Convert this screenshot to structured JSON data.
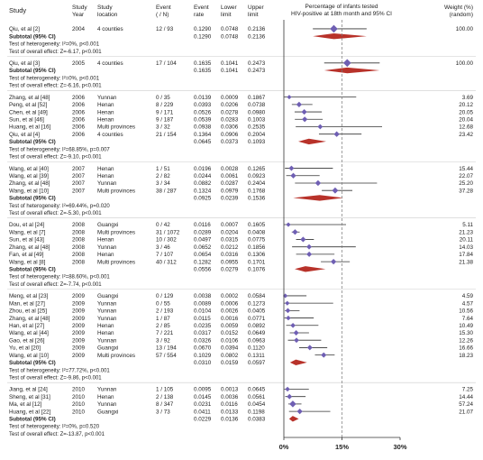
{
  "header": {
    "study": "Study",
    "study_year": [
      "Study",
      "Year"
    ],
    "study_location": [
      "Study",
      "location"
    ],
    "event_n": [
      "Event",
      "( / N)"
    ],
    "event_rate": [
      "Event",
      "rate"
    ],
    "lower": [
      "Lower",
      "limit"
    ],
    "upper": [
      "Upper",
      "limit"
    ],
    "plot_title": [
      "Percentage of infants tested",
      "HIV-positive at 18th month and 95% CI"
    ],
    "weight": [
      "Weight (%)",
      "(random)"
    ]
  },
  "colors": {
    "study_marker": "#6f5fb3",
    "summary_diamond": "#b8322a",
    "line": "#333333",
    "faint": "#cccccc"
  },
  "chart_data": {
    "type": "forest",
    "axis": {
      "min": 0,
      "max": 30,
      "ticks": [
        0,
        15,
        30
      ],
      "tick_labels": [
        "0%",
        "15%",
        "30%"
      ],
      "dashed_reference": 15
    },
    "groups": [
      {
        "year": "2004",
        "rows": [
          {
            "study": "Qiu, et al [2]",
            "year": "2004",
            "location": "4 counties",
            "event": "12 / 93",
            "rate": "0.1290",
            "lower": "0.0748",
            "upper": "0.2136",
            "weight": "100.00",
            "est": 12.9,
            "lo": 7.48,
            "hi": 21.36
          }
        ],
        "subtotal": {
          "label": "Subtotal (95% CI)",
          "rate": "0.1290",
          "lower": "0.0748",
          "upper": "0.2136",
          "est": 12.9,
          "lo": 7.48,
          "hi": 21.36
        },
        "heterogeneity": "Test of heterogeneity: I²=0%, p<0.001",
        "overall": "Test of overall effect: Z=-6.17, p<0.001"
      },
      {
        "year": "2005",
        "rows": [
          {
            "study": "Qiu, et al [3]",
            "year": "2005",
            "location": "4 counties",
            "event": "17 / 104",
            "rate": "0.1635",
            "lower": "0.1041",
            "upper": "0.2473",
            "weight": "100.00",
            "est": 16.35,
            "lo": 10.41,
            "hi": 24.73
          }
        ],
        "subtotal": {
          "label": "Subtotal (95% CI)",
          "rate": "0.1635",
          "lower": "0.1041",
          "upper": "0.2473",
          "est": 16.35,
          "lo": 10.41,
          "hi": 24.73
        },
        "heterogeneity": "Test of heterogeneity: I²=0%, p<0.001",
        "overall": "Test of overall effect: Z=-6.16, p<0.001"
      },
      {
        "year": "2006",
        "rows": [
          {
            "study": "Zhang, et al [48]",
            "year": "2006",
            "location": "Yunnan",
            "event": "0 / 35",
            "rate": "0.0139",
            "lower": "0.0009",
            "upper": "0.1867",
            "weight": "3.69",
            "est": 1.39,
            "lo": 0.09,
            "hi": 18.67
          },
          {
            "study": "Peng, et al [52]",
            "year": "2006",
            "location": "Henan",
            "event": "8 / 229",
            "rate": "0.0393",
            "lower": "0.0206",
            "upper": "0.0738",
            "weight": "20.12",
            "est": 3.93,
            "lo": 2.06,
            "hi": 7.38
          },
          {
            "study": "Chen, et al [49]",
            "year": "2006",
            "location": "Henan",
            "event": "9 / 171",
            "rate": "0.0526",
            "lower": "0.0278",
            "upper": "0.0980",
            "weight": "20.05",
            "est": 5.26,
            "lo": 2.78,
            "hi": 9.8
          },
          {
            "study": "Sun, et al [46]",
            "year": "2006",
            "location": "Henan",
            "event": "9 / 187",
            "rate": "0.0539",
            "lower": "0.0283",
            "upper": "0.1003",
            "weight": "20.04",
            "est": 5.39,
            "lo": 2.83,
            "hi": 10.03
          },
          {
            "study": "Huang, et al [16]",
            "year": "2006",
            "location": "Multi provinces",
            "event": "3 / 32",
            "rate": "0.0938",
            "lower": "0.0306",
            "upper": "0.2535",
            "weight": "12.68",
            "est": 9.38,
            "lo": 3.06,
            "hi": 25.35
          },
          {
            "study": "Qiu, et al [4]",
            "year": "2006",
            "location": "4 counties",
            "event": "21 / 154",
            "rate": "0.1364",
            "lower": "0.0906",
            "upper": "0.2004",
            "weight": "23.42",
            "est": 13.64,
            "lo": 9.06,
            "hi": 20.04
          }
        ],
        "subtotal": {
          "label": "Subtotal (95% CI)",
          "rate": "0.0645",
          "lower": "0.0373",
          "upper": "0.1093",
          "est": 6.45,
          "lo": 3.73,
          "hi": 10.93
        },
        "heterogeneity": "Test of heterogeneity: I²=68.85%, p=0.007",
        "overall": "Test of overall effect: Z=-9.10, p<0.001"
      },
      {
        "year": "2007",
        "rows": [
          {
            "study": "Wang, et al [40]",
            "year": "2007",
            "location": "Henan",
            "event": "1 / 51",
            "rate": "0.0196",
            "lower": "0.0028",
            "upper": "0.1265",
            "weight": "15.44",
            "est": 1.96,
            "lo": 0.28,
            "hi": 12.65
          },
          {
            "study": "Wang, et al [39]",
            "year": "2007",
            "location": "Henan",
            "event": "2 / 82",
            "rate": "0.0244",
            "lower": "0.0061",
            "upper": "0.0923",
            "weight": "22.07",
            "est": 2.44,
            "lo": 0.61,
            "hi": 9.23
          },
          {
            "study": "Zhang, et al [48]",
            "year": "2007",
            "location": "Yunnan",
            "event": "3 / 34",
            "rate": "0.0882",
            "lower": "0.0287",
            "upper": "0.2404",
            "weight": "25.20",
            "est": 8.82,
            "lo": 2.87,
            "hi": 24.04
          },
          {
            "study": "Wang, et al [10]",
            "year": "2007",
            "location": "Multi provinces",
            "event": "38 / 287",
            "rate": "0.1324",
            "lower": "0.0979",
            "upper": "0.1768",
            "weight": "37.28",
            "est": 13.24,
            "lo": 9.79,
            "hi": 17.68
          }
        ],
        "subtotal": {
          "label": "Subtotal (95% CI)",
          "rate": "0.0925",
          "lower": "0.0239",
          "upper": "0.1536",
          "est": 9.25,
          "lo": 2.39,
          "hi": 15.36
        },
        "heterogeneity": "Test of heterogeneity: I²=69.44%, p=0.020",
        "overall": "Test of overall effect: Z=-5.30, p<0.001"
      },
      {
        "year": "2008",
        "rows": [
          {
            "study": "Dou, et al [24]",
            "year": "2008",
            "location": "Guangxi",
            "event": "0 / 42",
            "rate": "0.0116",
            "lower": "0.0007",
            "upper": "0.1605",
            "weight": "5.11",
            "est": 1.16,
            "lo": 0.07,
            "hi": 16.05
          },
          {
            "study": "Wang, et al [7]",
            "year": "2008",
            "location": "Multi provinces",
            "event": "31 / 1072",
            "rate": "0.0289",
            "lower": "0.0204",
            "upper": "0.0408",
            "weight": "21.23",
            "est": 2.89,
            "lo": 2.04,
            "hi": 4.08
          },
          {
            "study": "Sun, et al [43]",
            "year": "2008",
            "location": "Henan",
            "event": "10 / 302",
            "rate": "0.0497",
            "lower": "0.0315",
            "upper": "0.0775",
            "weight": "20.11",
            "est": 4.97,
            "lo": 3.15,
            "hi": 7.75
          },
          {
            "study": "Zhang, et al [48]",
            "year": "2008",
            "location": "Yunnan",
            "event": "3 / 46",
            "rate": "0.0652",
            "lower": "0.0212",
            "upper": "0.1856",
            "weight": "14.03",
            "est": 6.52,
            "lo": 2.12,
            "hi": 18.56
          },
          {
            "study": "Fan, et al [49]",
            "year": "2008",
            "location": "Henan",
            "event": "7 / 107",
            "rate": "0.0654",
            "lower": "0.0316",
            "upper": "0.1306",
            "weight": "17.84",
            "est": 6.54,
            "lo": 3.16,
            "hi": 13.06
          },
          {
            "study": "Wang, et al [8]",
            "year": "2008",
            "location": "Multi provinces",
            "event": "40 / 312",
            "rate": "0.1282",
            "lower": "0.0955",
            "upper": "0.1701",
            "weight": "21.38",
            "est": 12.82,
            "lo": 9.55,
            "hi": 17.01
          }
        ],
        "subtotal": {
          "label": "Subtotal (95% CI)",
          "rate": "0.0556",
          "lower": "0.0279",
          "upper": "0.1076",
          "est": 5.56,
          "lo": 2.79,
          "hi": 10.76
        },
        "heterogeneity": "Test of heterogeneity: I²=88.60%, p<0.001",
        "overall": "Test of overall effect: Z=-7.74, p<0.001"
      },
      {
        "year": "2009",
        "rows": [
          {
            "study": "Meng, et al [23]",
            "year": "2009",
            "location": "Guangxi",
            "event": "0 / 129",
            "rate": "0.0038",
            "lower": "0.0002",
            "upper": "0.0584",
            "weight": "4.59",
            "est": 0.38,
            "lo": 0.02,
            "hi": 5.84
          },
          {
            "study": "Man, et al [27]",
            "year": "2009",
            "location": "Yunnan",
            "event": "0 / 55",
            "rate": "0.0089",
            "lower": "0.0006",
            "upper": "0.1273",
            "weight": "4.57",
            "est": 0.89,
            "lo": 0.06,
            "hi": 12.73
          },
          {
            "study": "Zhou, et al [25]",
            "year": "2009",
            "location": "Yunnan",
            "event": "2 / 193",
            "rate": "0.0104",
            "lower": "0.0026",
            "upper": "0.0405",
            "weight": "10.56",
            "est": 1.04,
            "lo": 0.26,
            "hi": 4.05
          },
          {
            "study": "Zhang, et al [48]",
            "year": "2009",
            "location": "Yunnan",
            "event": "1 / 87",
            "rate": "0.0115",
            "lower": "0.0016",
            "upper": "0.0771",
            "weight": "7.64",
            "est": 1.15,
            "lo": 0.16,
            "hi": 7.71
          },
          {
            "study": "Han, et al [27]",
            "year": "2009",
            "location": "Henan",
            "event": "2 / 85",
            "rate": "0.0235",
            "lower": "0.0059",
            "upper": "0.0892",
            "weight": "10.49",
            "est": 2.35,
            "lo": 0.59,
            "hi": 8.92
          },
          {
            "study": "Wang, et al [44]",
            "year": "2009",
            "location": "Henan",
            "event": "7 / 221",
            "rate": "0.0317",
            "lower": "0.0152",
            "upper": "0.0649",
            "weight": "15.30",
            "est": 3.17,
            "lo": 1.52,
            "hi": 6.49
          },
          {
            "study": "Gao, et al [26]",
            "year": "2009",
            "location": "Yunnan",
            "event": "3 / 92",
            "rate": "0.0326",
            "lower": "0.0106",
            "upper": "0.0963",
            "weight": "12.26",
            "est": 3.26,
            "lo": 1.06,
            "hi": 9.63
          },
          {
            "study": "Yu, et al [20]",
            "year": "2009",
            "location": "Guangxi",
            "event": "13 / 194",
            "rate": "0.0670",
            "lower": "0.0394",
            "upper": "0.1120",
            "weight": "16.66",
            "est": 6.7,
            "lo": 3.94,
            "hi": 11.2
          },
          {
            "study": "Wang, et al [10]",
            "year": "2009",
            "location": "Multi provinces",
            "event": "57 / 554",
            "rate": "0.1029",
            "lower": "0.0802",
            "upper": "0.1311",
            "weight": "18.23",
            "est": 10.29,
            "lo": 8.02,
            "hi": 13.11
          }
        ],
        "subtotal": {
          "label": "Subtotal (95% CI)",
          "rate": "0.0310",
          "lower": "0.0159",
          "upper": "0.0597",
          "est": 3.1,
          "lo": 1.59,
          "hi": 5.97
        },
        "heterogeneity": "Test of heterogeneity: I²=77.72%, p<0.001",
        "overall": "Test of overall effect: Z=-9.86, p<0.001"
      },
      {
        "year": "2010",
        "rows": [
          {
            "study": "Jiang, et al [24]",
            "year": "2010",
            "location": "Yunnan",
            "event": "1 / 105",
            "rate": "0.0095",
            "lower": "0.0013",
            "upper": "0.0645",
            "weight": "7.25",
            "est": 0.95,
            "lo": 0.13,
            "hi": 6.45
          },
          {
            "study": "Sheng, et al [31]",
            "year": "2010",
            "location": "Henan",
            "event": "2 / 138",
            "rate": "0.0145",
            "lower": "0.0036",
            "upper": "0.0561",
            "weight": "14.44",
            "est": 1.45,
            "lo": 0.36,
            "hi": 5.61
          },
          {
            "study": "Ma, et al [12]",
            "year": "2010",
            "location": "Yunnan",
            "event": "8 / 347",
            "rate": "0.0231",
            "lower": "0.0116",
            "upper": "0.0454",
            "weight": "57.24",
            "est": 2.31,
            "lo": 1.16,
            "hi": 4.54
          },
          {
            "study": "Huang, et al [22]",
            "year": "2010",
            "location": "Guangxi",
            "event": "3 / 73",
            "rate": "0.0411",
            "lower": "0.0133",
            "upper": "0.1198",
            "weight": "21.07",
            "est": 4.11,
            "lo": 1.33,
            "hi": 11.98
          }
        ],
        "subtotal": {
          "label": "Subtotal (95% CI)",
          "rate": "0.0229",
          "lower": "0.0136",
          "upper": "0.0383",
          "est": 2.29,
          "lo": 1.36,
          "hi": 3.83
        },
        "heterogeneity": "Test of heterogeneity: I²=0%, p=0.520",
        "overall": "Test of overall effect: Z=-13.87, p<0.001"
      }
    ]
  }
}
